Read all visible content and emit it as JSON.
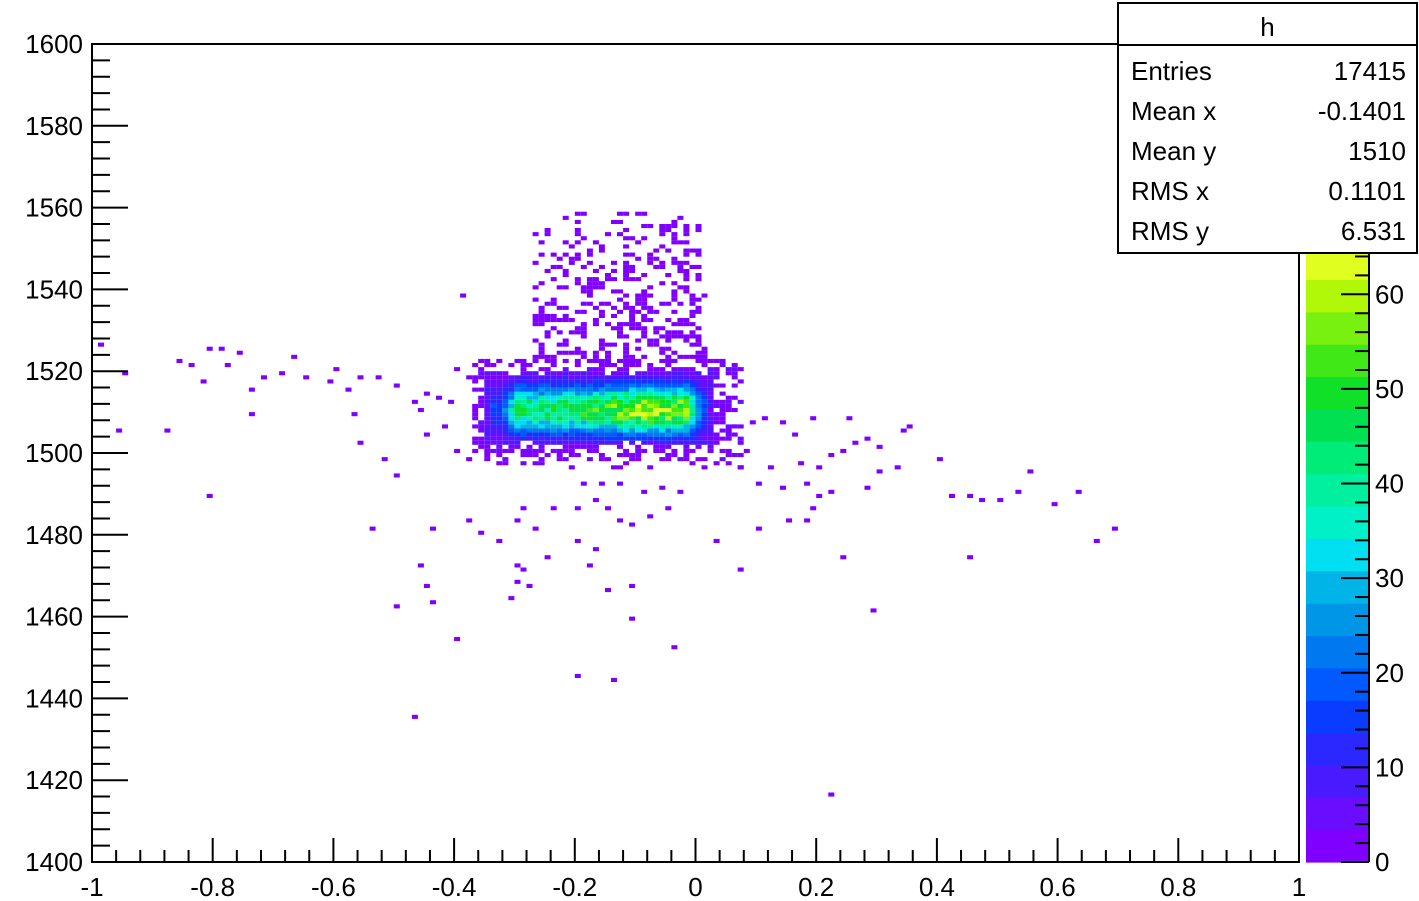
{
  "chart_data": {
    "type": "heatmap",
    "title": "",
    "xlabel": "",
    "ylabel": "",
    "xlim": [
      -1,
      1
    ],
    "ylim": [
      1400,
      1600
    ],
    "x_ticks": [
      "-1",
      "-0.8",
      "-0.6",
      "-0.4",
      "-0.2",
      "0",
      "0.2",
      "0.4",
      "0.6",
      "0.8",
      "1"
    ],
    "y_ticks": [
      "1400",
      "1420",
      "1440",
      "1460",
      "1480",
      "1500",
      "1520",
      "1540",
      "1560",
      "1580",
      "1600"
    ],
    "grid": false,
    "colorbar": {
      "range": [
        0,
        65
      ],
      "tick_labels": [
        "0",
        "10",
        "20",
        "30",
        "40",
        "50",
        "60"
      ],
      "colors": [
        "#7f00ff",
        "#6a0dff",
        "#4a1aff",
        "#2a28ff",
        "#0a3cff",
        "#005aff",
        "#0078f0",
        "#0096e8",
        "#00b4e8",
        "#00e0f0",
        "#00f0c8",
        "#00f0a0",
        "#00ec78",
        "#00e050",
        "#10e028",
        "#40e818",
        "#78f010",
        "#b0f808",
        "#e0ff20"
      ]
    },
    "stats": {
      "title": "h",
      "rows": [
        {
          "label": "Entries",
          "value": "17415"
        },
        {
          "label": "Mean x",
          "value": "-0.1401"
        },
        {
          "label": "Mean y",
          "value": "1510"
        },
        {
          "label": "RMS x",
          "value": "0.1101"
        },
        {
          "label": "RMS y",
          "value": "6.531"
        }
      ]
    },
    "bin_width": [
      0.01,
      1.0
    ],
    "core": {
      "x_range": [
        -0.34,
        0.02
      ],
      "y_range": [
        1503,
        1518
      ],
      "peak_x": -0.07,
      "peak_y": 1510,
      "peak": 62
    },
    "halo": {
      "x_range": [
        -0.37,
        0.08
      ],
      "y_range": [
        1496,
        1522
      ]
    },
    "upper_cluster": {
      "x_range": [
        -0.27,
        0.02
      ],
      "y_range": [
        1522,
        1558
      ]
    },
    "sparse_points": [
      [
        -0.99,
        1526
      ],
      [
        -0.95,
        1519
      ],
      [
        -0.96,
        1505
      ],
      [
        -0.88,
        1505
      ],
      [
        -0.86,
        1522
      ],
      [
        -0.84,
        1521
      ],
      [
        -0.82,
        1517
      ],
      [
        -0.78,
        1521
      ],
      [
        -0.81,
        1525
      ],
      [
        -0.79,
        1525
      ],
      [
        -0.76,
        1524
      ],
      [
        -0.74,
        1515
      ],
      [
        -0.74,
        1509
      ],
      [
        -0.72,
        1518
      ],
      [
        -0.69,
        1519
      ],
      [
        -0.67,
        1523
      ],
      [
        -0.65,
        1518
      ],
      [
        -0.61,
        1517
      ],
      [
        -0.6,
        1520
      ],
      [
        -0.58,
        1515
      ],
      [
        -0.57,
        1509
      ],
      [
        -0.56,
        1518
      ],
      [
        -0.53,
        1518
      ],
      [
        -0.5,
        1516
      ],
      [
        -0.47,
        1512
      ],
      [
        -0.45,
        1514
      ],
      [
        -0.43,
        1513
      ],
      [
        -0.41,
        1512
      ],
      [
        -0.4,
        1520
      ],
      [
        -0.38,
        1518
      ],
      [
        -0.56,
        1502
      ],
      [
        -0.52,
        1498
      ],
      [
        -0.5,
        1494
      ],
      [
        -0.46,
        1510
      ],
      [
        -0.45,
        1504
      ],
      [
        -0.42,
        1506
      ],
      [
        -0.4,
        1500
      ],
      [
        -0.38,
        1498
      ],
      [
        -0.39,
        1538
      ],
      [
        -0.81,
        1489
      ],
      [
        -0.54,
        1481
      ],
      [
        -0.44,
        1481
      ],
      [
        -0.38,
        1483
      ],
      [
        -0.36,
        1480
      ],
      [
        -0.33,
        1478
      ],
      [
        -0.3,
        1483
      ],
      [
        -0.29,
        1486
      ],
      [
        -0.27,
        1481
      ],
      [
        -0.24,
        1486
      ],
      [
        -0.2,
        1486
      ],
      [
        -0.2,
        1478
      ],
      [
        -0.17,
        1476
      ],
      [
        -0.18,
        1472
      ],
      [
        -0.25,
        1474
      ],
      [
        -0.29,
        1471
      ],
      [
        -0.3,
        1472
      ],
      [
        -0.46,
        1472
      ],
      [
        -0.45,
        1467
      ],
      [
        -0.5,
        1462
      ],
      [
        -0.44,
        1463
      ],
      [
        -0.3,
        1468
      ],
      [
        -0.28,
        1467
      ],
      [
        -0.31,
        1464
      ],
      [
        -0.15,
        1466
      ],
      [
        -0.11,
        1467
      ],
      [
        -0.11,
        1459
      ],
      [
        -0.4,
        1454
      ],
      [
        -0.04,
        1452
      ],
      [
        -0.2,
        1445
      ],
      [
        -0.14,
        1444
      ],
      [
        -0.47,
        1435
      ],
      [
        0.22,
        1416
      ],
      [
        0.03,
        1478
      ],
      [
        0.07,
        1471
      ],
      [
        0.24,
        1474
      ],
      [
        0.29,
        1461
      ],
      [
        0.45,
        1474
      ],
      [
        0.66,
        1478
      ],
      [
        0.69,
        1481
      ],
      [
        0.4,
        1498
      ],
      [
        0.42,
        1489
      ],
      [
        0.45,
        1489
      ],
      [
        0.47,
        1488
      ],
      [
        0.5,
        1488
      ],
      [
        0.53,
        1490
      ],
      [
        0.55,
        1495
      ],
      [
        0.59,
        1487
      ],
      [
        0.63,
        1490
      ],
      [
        0.33,
        1496
      ],
      [
        0.3,
        1495
      ],
      [
        0.28,
        1491
      ],
      [
        0.24,
        1500
      ],
      [
        0.22,
        1499
      ],
      [
        0.28,
        1503
      ],
      [
        0.26,
        1502
      ],
      [
        0.3,
        1501
      ],
      [
        0.34,
        1505
      ],
      [
        0.35,
        1506
      ],
      [
        0.25,
        1508
      ],
      [
        0.19,
        1508
      ],
      [
        0.16,
        1504
      ],
      [
        0.14,
        1507
      ],
      [
        0.11,
        1508
      ],
      [
        0.09,
        1507
      ],
      [
        0.06,
        1506
      ],
      [
        0.08,
        1500
      ],
      [
        0.12,
        1496
      ],
      [
        0.17,
        1497
      ],
      [
        0.2,
        1496
      ],
      [
        0.14,
        1491
      ],
      [
        0.1,
        1492
      ],
      [
        0.07,
        1496
      ],
      [
        0.18,
        1492
      ],
      [
        0.19,
        1486
      ],
      [
        0.15,
        1483
      ],
      [
        0.18,
        1483
      ],
      [
        0.2,
        1489
      ],
      [
        0.22,
        1490
      ],
      [
        0.1,
        1481
      ],
      [
        -0.05,
        1486
      ],
      [
        -0.08,
        1484
      ],
      [
        -0.11,
        1482
      ],
      [
        -0.13,
        1483
      ],
      [
        -0.15,
        1486
      ],
      [
        -0.17,
        1488
      ],
      [
        -0.09,
        1490
      ],
      [
        -0.06,
        1491
      ],
      [
        -0.03,
        1490
      ],
      [
        -0.13,
        1492
      ],
      [
        -0.16,
        1492
      ],
      [
        -0.19,
        1492
      ]
    ]
  }
}
